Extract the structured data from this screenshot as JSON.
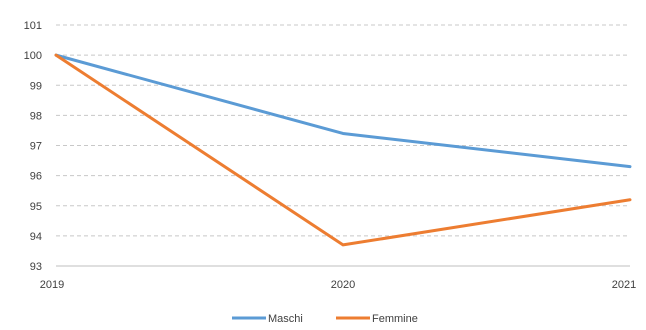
{
  "chart_data": {
    "type": "line",
    "title": "",
    "xlabel": "",
    "ylabel": "",
    "categories": [
      "2019",
      "2020",
      "2021"
    ],
    "series": [
      {
        "name": "Maschi",
        "values": [
          100,
          97.4,
          96.3
        ],
        "color": "#5b9bd5"
      },
      {
        "name": "Femmine",
        "values": [
          100,
          93.7,
          95.2
        ],
        "color": "#ed7d31"
      }
    ],
    "ylim": [
      93,
      101
    ],
    "yticks": [
      "93",
      "94",
      "95",
      "96",
      "97",
      "98",
      "99",
      "100",
      "101"
    ],
    "grid": true,
    "legend_position": "bottom"
  }
}
